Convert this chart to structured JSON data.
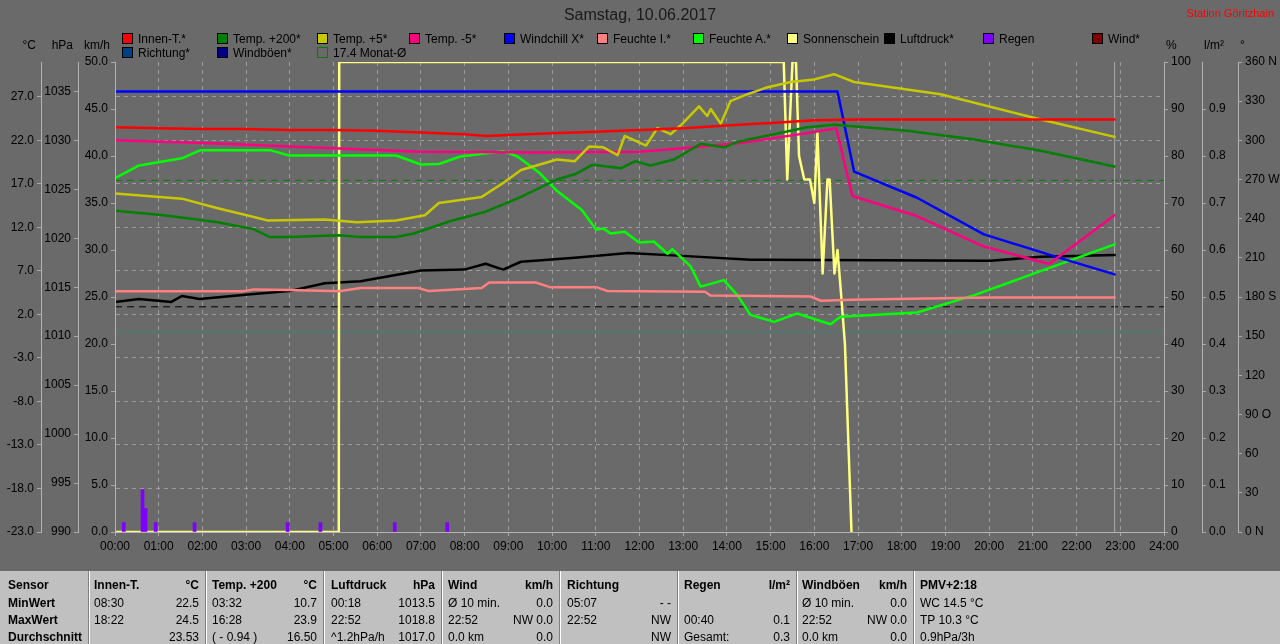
{
  "chart_data": [
    {
      "type": "line",
      "title": "Samstag, 10.06.2017",
      "annotations": [
        "Station Göritzhain"
      ],
      "ylabel": "°C",
      "y2label": "%",
      "y3label": "hPa",
      "xlim": [
        0,
        24
      ],
      "xticks": [
        {
          "value": 0,
          "label": "00:00"
        },
        {
          "value": 1,
          "label": "01:00"
        },
        {
          "value": 2,
          "label": "02:00"
        },
        {
          "value": 3,
          "label": "03:00"
        },
        {
          "value": 4,
          "label": "04:00"
        },
        {
          "value": 5,
          "label": "05:00"
        },
        {
          "value": 6,
          "label": "06:00"
        },
        {
          "value": 7,
          "label": "07:00"
        },
        {
          "value": 8,
          "label": "08:00"
        },
        {
          "value": 9,
          "label": "09:00"
        },
        {
          "value": 10,
          "label": "10:00"
        },
        {
          "value": 11,
          "label": "11:00"
        },
        {
          "value": 12,
          "label": "12:00"
        },
        {
          "value": 13,
          "label": "13:00"
        },
        {
          "value": 14,
          "label": "14:00"
        },
        {
          "value": 15,
          "label": "15:00"
        },
        {
          "value": 16,
          "label": "16:00"
        },
        {
          "value": 17,
          "label": "17:00"
        },
        {
          "value": 18,
          "label": "18:00"
        },
        {
          "value": 19,
          "label": "19:00"
        },
        {
          "value": 20,
          "label": "20:00"
        },
        {
          "value": 21,
          "label": "21:00"
        },
        {
          "value": 22,
          "label": "22:00"
        },
        {
          "value": 23,
          "label": "23:00"
        },
        {
          "value": 24,
          "label": "24:00"
        }
      ],
      "ylim": [
        -23,
        31
      ],
      "yticks": [
        {
          "value": -23,
          "label": "-23.0"
        },
        {
          "value": -18,
          "label": "-18.0"
        },
        {
          "value": -13,
          "label": "-13.0"
        },
        {
          "value": -8,
          "label": "-8.0"
        },
        {
          "value": -3,
          "label": "-3.0"
        },
        {
          "value": 2,
          "label": "2.0"
        },
        {
          "value": 7,
          "label": "7.0"
        },
        {
          "value": 12,
          "label": "12.0"
        },
        {
          "value": 17,
          "label": "17.0"
        },
        {
          "value": 22,
          "label": "22.0"
        },
        {
          "value": 27,
          "label": "27.0"
        }
      ],
      "y2lim": [
        0,
        100
      ],
      "y2ticks": [
        0,
        10,
        20,
        30,
        40,
        50,
        60,
        70,
        80,
        90,
        100
      ],
      "y3lim": [
        990,
        1038
      ],
      "y3ticks": [
        990,
        995,
        1000,
        1005,
        1010,
        1015,
        1020,
        1025,
        1030,
        1035
      ],
      "grid": true,
      "legend": "top",
      "series": [
        {
          "name": "Innen-T.*",
          "color": "#ff0000",
          "x": [
            0,
            1,
            2,
            3,
            4,
            5,
            6,
            7,
            8,
            8.5,
            9,
            10,
            11,
            12,
            13,
            14,
            15,
            16,
            17,
            18.37,
            20,
            21.5,
            22.87
          ],
          "values": [
            23.5,
            23.4,
            23.3,
            23.3,
            23.2,
            23.2,
            23.1,
            22.9,
            22.7,
            22.5,
            22.6,
            22.8,
            23.0,
            23.2,
            23.4,
            23.7,
            24.0,
            24.3,
            24.4,
            24.4,
            24.4,
            24.4,
            24.4
          ]
        },
        {
          "name": "Temp. +200*",
          "color": "#008000",
          "x": [
            0,
            1.12,
            2.35,
            3.17,
            3.53,
            3.98,
            5.13,
            5.62,
            6.43,
            6.84,
            7.66,
            8.48,
            9.29,
            10.11,
            10.52,
            10.93,
            11.58,
            11.91,
            12.25,
            12.79,
            13.4,
            13.93,
            14.3,
            15.08,
            15.83,
            16.47,
            18.13,
            19.66,
            21.18,
            22.87
          ],
          "values": [
            13.9,
            13.4,
            12.6,
            11.8,
            10.9,
            10.9,
            11.1,
            10.9,
            10.9,
            11.3,
            12.7,
            13.8,
            15.5,
            17.5,
            18.1,
            19.2,
            18.8,
            19.6,
            19.1,
            19.8,
            21.6,
            21.2,
            21.9,
            22.7,
            23.5,
            23.8,
            23.1,
            22.1,
            20.8,
            19.0
          ]
        },
        {
          "name": "Temp. +5*",
          "color": "#c8c800",
          "x": [
            0,
            1.53,
            2.35,
            3.49,
            4.8,
            5.53,
            6.43,
            7.09,
            7.41,
            8.39,
            8.88,
            9.29,
            10.11,
            10.52,
            10.85,
            11.17,
            11.5,
            11.66,
            12.15,
            12.41,
            12.71,
            12.94,
            13.36,
            13.55,
            13.63,
            13.86,
            14.08,
            14.47,
            14.93,
            15.46,
            16.0,
            16.45,
            16.91,
            18.89,
            21.18,
            22.87
          ],
          "values": [
            15.9,
            15.3,
            14.2,
            12.8,
            12.9,
            12.6,
            12.8,
            13.4,
            14.8,
            15.5,
            17.1,
            18.6,
            19.8,
            19.6,
            21.3,
            21.2,
            20.3,
            22.5,
            21.4,
            23.4,
            22.7,
            23.7,
            25.9,
            24.8,
            25.6,
            23.9,
            26.5,
            27.3,
            28.1,
            28.7,
            29.0,
            29.6,
            28.7,
            27.3,
            24.4,
            22.4
          ]
        },
        {
          "name": "Temp. -5*",
          "color": "#ff0080",
          "x": [
            0,
            2,
            4,
            5,
            7,
            9.7,
            12,
            13,
            14.3,
            15.8,
            16.5,
            16.87,
            18.35,
            19.88,
            21.37,
            22.87
          ],
          "values": [
            22.0,
            21.7,
            21.3,
            21.1,
            20.7,
            20.6,
            20.7,
            21.1,
            21.7,
            22.8,
            23.4,
            15.6,
            13.3,
            9.8,
            7.8,
            13.4
          ]
        },
        {
          "name": "Windchill X*",
          "color": "#0000ff",
          "x": [
            0,
            16.53,
            16.91,
            18.35,
            19.88,
            21.48,
            22.87
          ],
          "values": [
            27.6,
            27.6,
            18.4,
            15.4,
            11.2,
            8.7,
            6.6
          ]
        },
        {
          "name": "Feuchte I.*",
          "color": "#ff8080",
          "axis": "y2",
          "x": [
            0,
            2.92,
            3.17,
            3.98,
            5.13,
            5.62,
            6.93,
            7.17,
            8.39,
            8.56,
            9.62,
            9.95,
            11.01,
            11.26,
            13.5,
            13.63,
            15.92,
            16.15,
            16.83,
            20,
            22.87
          ],
          "values": [
            51.2,
            51.2,
            51.6,
            51.5,
            51.2,
            51.9,
            51.9,
            51.3,
            51.9,
            53.1,
            53.1,
            52.1,
            52.1,
            51.3,
            51.1,
            50.3,
            50.1,
            49.2,
            49.4,
            49.9,
            49.9
          ]
        },
        {
          "name": "Feuchte A.*",
          "color": "#00ff00",
          "axis": "y2",
          "x": [
            0,
            0.55,
            1.53,
            1.94,
            3.57,
            3.98,
            6.43,
            7.0,
            7.41,
            7.9,
            8.88,
            9.21,
            9.7,
            10.11,
            10.68,
            11.01,
            11.17,
            11.34,
            11.66,
            11.99,
            12.33,
            12.64,
            12.75,
            13.17,
            13.4,
            13.93,
            14.24,
            14.54,
            15.08,
            15.61,
            16.37,
            16.6,
            18.35,
            19.66,
            22.87
          ],
          "values": [
            75.3,
            78.0,
            79.5,
            81.2,
            81.2,
            80.1,
            80.1,
            78.2,
            78.3,
            79.9,
            81.0,
            79.9,
            76.5,
            72.6,
            68.5,
            64.3,
            64.6,
            63.5,
            63.9,
            61.6,
            61.8,
            59.2,
            60.2,
            56.5,
            52.2,
            53.6,
            50.4,
            46.2,
            44.7,
            46.5,
            44.2,
            45.8,
            46.7,
            50.4,
            61.2
          ]
        },
        {
          "name": "Sonnenschein",
          "color": "#ffff80",
          "axis": "y2",
          "x": [
            0,
            5.12,
            5.13,
            15.3,
            15.38,
            15.5,
            15.58,
            15.65,
            15.77,
            15.9,
            16.0,
            16.07,
            16.19,
            16.3,
            16.35,
            16.46,
            16.53,
            16.6,
            16.7,
            16.85
          ],
          "values": [
            0,
            0,
            100,
            100,
            75,
            100,
            100,
            80,
            75,
            75,
            70,
            85,
            55,
            75,
            75,
            55,
            60,
            52,
            40,
            0
          ]
        },
        {
          "name": "Luftdruck*",
          "color": "#000000",
          "axis": "y3",
          "x": [
            0,
            0.55,
            1.29,
            1.53,
            1.94,
            3.17,
            3.98,
            4.8,
            5.62,
            7.0,
            7.99,
            8.48,
            8.88,
            9.29,
            10.52,
            11.74,
            12.99,
            14.54,
            20.03,
            21.18,
            22.87
          ],
          "values": [
            1013.5,
            1013.8,
            1013.5,
            1014.1,
            1013.8,
            1014.3,
            1014.6,
            1015.4,
            1015.6,
            1016.7,
            1016.8,
            1017.4,
            1016.8,
            1017.6,
            1018.0,
            1018.5,
            1018.2,
            1017.8,
            1017.7,
            1018.1,
            1018.3
          ]
        }
      ],
      "ref_lines": [
        {
          "axis": "y",
          "value": 17.4,
          "label": "17.4 Monat-Ø",
          "color": "#008000",
          "line_style": "dashed"
        },
        {
          "axis": "y3",
          "value": 1013,
          "color": "#000000",
          "line_style": "dashed"
        },
        {
          "axis": "y",
          "value": 0,
          "color": "#408080",
          "line_style": "solid"
        },
        {
          "axis": "x",
          "value": 22.87,
          "color": "#a8a8a8",
          "line_style": "solid"
        }
      ]
    },
    {
      "type": "bar",
      "ylabel": "km/h",
      "y2label": "l/m²",
      "y3label": "°",
      "xlim": [
        0,
        24
      ],
      "tick_labels": "y",
      "legend": "top",
      "ylim": [
        0,
        50
      ],
      "yticks": [
        {
          "value": 0,
          "label": "0.0"
        },
        {
          "value": 5,
          "label": "5.0"
        },
        {
          "value": 10,
          "label": "10.0"
        },
        {
          "value": 15,
          "label": "15.0"
        },
        {
          "value": 20,
          "label": "20.0"
        },
        {
          "value": 25,
          "label": "25.0"
        },
        {
          "value": 30,
          "label": "30.0"
        },
        {
          "value": 35,
          "label": "35.0"
        },
        {
          "value": 40,
          "label": "40.0"
        },
        {
          "value": 45,
          "label": "45.0"
        },
        {
          "value": 50,
          "label": "50.0"
        }
      ],
      "y2lim": [
        0,
        1
      ],
      "y2ticks": [
        {
          "value": 0,
          "label": "0.0"
        },
        0.1,
        0.2,
        0.3,
        0.4,
        0.5,
        0.6,
        0.7,
        0.8,
        0.9
      ],
      "y3lim": [
        0,
        360
      ],
      "y3ticks": [
        {
          "value": 0,
          "label": "0 N"
        },
        30,
        60,
        {
          "value": 90,
          "label": "90 O"
        },
        120,
        150,
        {
          "value": 180,
          "label": "180 S"
        },
        210,
        240,
        {
          "value": 270,
          "label": "270 W"
        },
        300,
        330,
        {
          "value": 360,
          "label": "360 N"
        }
      ],
      "series": [
        {
          "name": "Regen",
          "color": "#8000ff",
          "axis": "y2",
          "x": [
            0.2,
            0.63,
            0.7,
            0.93,
            1.82,
            3.95,
            4.7,
            6.4,
            7.6
          ],
          "values": [
            0.02,
            0.09,
            0.05,
            0.02,
            0.02,
            0.02,
            0.02,
            0.02,
            0.02
          ]
        },
        {
          "name": "Wind*",
          "color": "#800000"
        },
        {
          "name": "Richtung*",
          "color": "#004080",
          "axis": "y3"
        },
        {
          "name": "Windböen*",
          "color": "#000080"
        }
      ]
    },
    {
      "type": "other",
      "annotations": [
        "Sensor",
        "Innen-T.",
        "°C",
        "Temp. +200",
        "°C",
        "Luftdruck",
        "hPa",
        "Wind",
        "km/h",
        "Richtung",
        "Regen",
        "l/m²",
        "Windböen",
        "km/h",
        "PMV+2:18",
        "MinWert",
        "08:30",
        "22.5",
        "03:32",
        "10.7",
        "00:18",
        "1013.5",
        "Ø 10 min.",
        "0.0",
        "05:07",
        "- -",
        "Ø 10 min.",
        "0.0",
        "WC 14.5 °C",
        "MaxWert",
        "18:22",
        "24.5",
        "16:28",
        "23.9",
        "22:52",
        "1018.8",
        "22:52",
        "NW 0.0",
        "22:52",
        "NW",
        "00:40",
        "0.1",
        "22:52",
        "NW 0.0",
        "TP 10.3 °C",
        "Durchschnitt",
        "23.53",
        "( - 0.94 )",
        "16.50",
        "^1.2hPa/h",
        "1017.0",
        "0.0 km",
        "0.0",
        "NW",
        "Gesamt:",
        "0.3",
        "0.0 km",
        "0.0",
        "0.9hPa/3h"
      ]
    }
  ]
}
